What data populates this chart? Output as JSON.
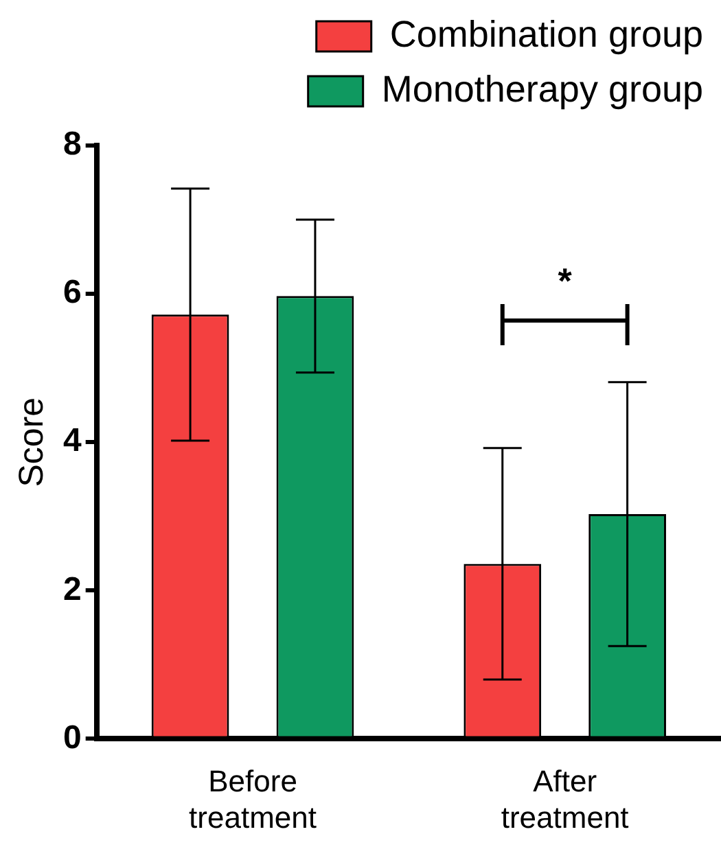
{
  "chart_data": {
    "type": "bar",
    "ylabel": "Score",
    "categories": [
      "Before\ntreatment",
      "After\ntreatment"
    ],
    "series": [
      {
        "name": "Combination group",
        "color": "#f44040",
        "values": [
          5.72,
          2.36
        ],
        "errors": [
          1.7,
          1.56
        ]
      },
      {
        "name": "Monotherapy group",
        "color": "#0f9960",
        "values": [
          5.97,
          3.03
        ],
        "errors": [
          1.03,
          1.78
        ]
      }
    ],
    "ylim": [
      0,
      8
    ],
    "yticks": [
      0,
      2,
      4,
      6,
      8
    ],
    "grid": false,
    "legend": "top right",
    "annotations": [
      "*"
    ]
  }
}
